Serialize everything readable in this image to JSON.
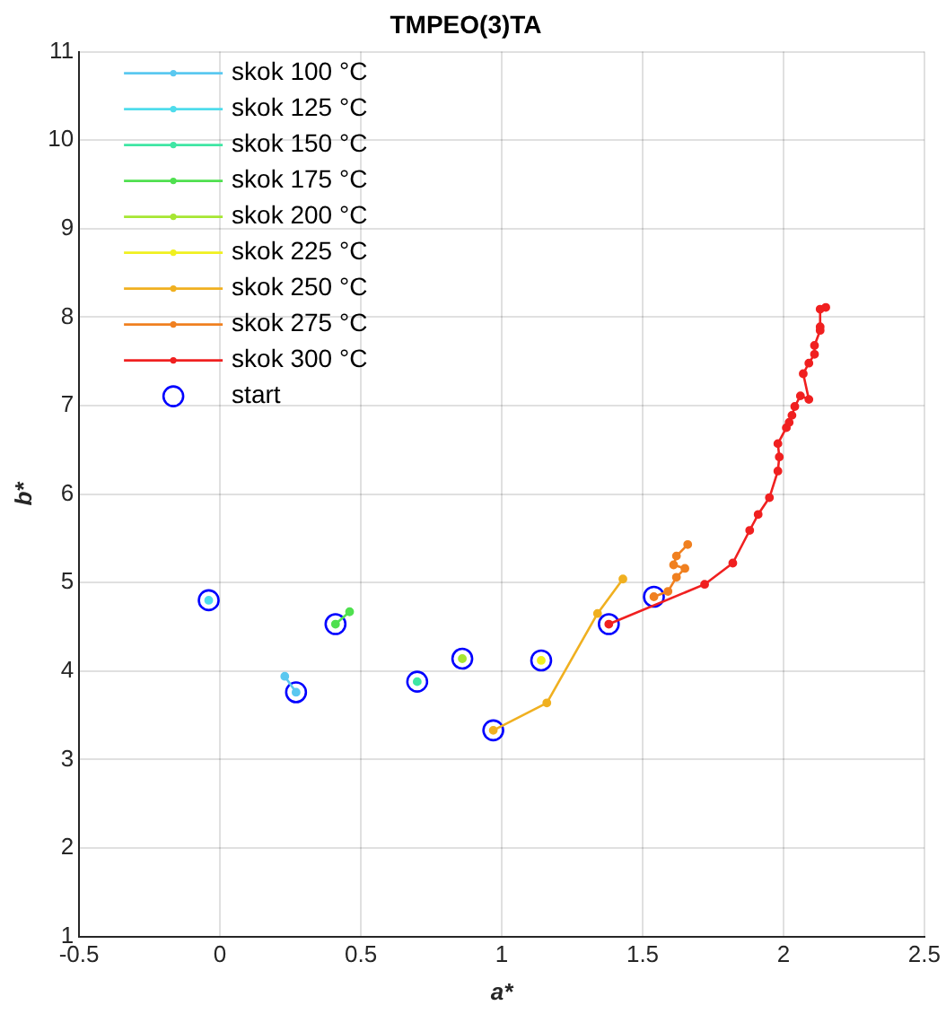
{
  "chart_data": {
    "type": "line",
    "title": "TMPEO(3)TA",
    "xlabel": "a*",
    "ylabel": "b*",
    "xlim": [
      -0.5,
      2.5
    ],
    "xticks": [
      -0.5,
      0,
      0.5,
      1,
      1.5,
      2,
      2.5
    ],
    "ylim": [
      1,
      11
    ],
    "yticks": [
      1,
      2,
      3,
      4,
      5,
      6,
      7,
      8,
      9,
      10,
      11
    ],
    "grid": true,
    "legend": "top left",
    "marker": "circle",
    "series": [
      {
        "name": "skok 100 °C",
        "color": "#5ac8f0",
        "x": [
          0.27,
          0.23
        ],
        "values": [
          3.76,
          3.94
        ]
      },
      {
        "name": "skok 125 °C",
        "color": "#4fdcec",
        "x": [
          -0.04
        ],
        "values": [
          4.8
        ]
      },
      {
        "name": "skok 150 °C",
        "color": "#3fe6a4",
        "x": [
          0.7
        ],
        "values": [
          3.88
        ]
      },
      {
        "name": "skok 175 °C",
        "color": "#4fe04f",
        "x": [
          0.41,
          0.46
        ],
        "values": [
          4.53,
          4.67
        ]
      },
      {
        "name": "skok 200 °C",
        "color": "#a6e632",
        "x": [
          0.86
        ],
        "values": [
          4.14
        ]
      },
      {
        "name": "skok 225 °C",
        "color": "#f0f020",
        "x": [
          1.14
        ],
        "values": [
          4.12
        ]
      },
      {
        "name": "skok 250 °C",
        "color": "#f0b020",
        "x": [
          0.97,
          1.16,
          1.34,
          1.43
        ],
        "values": [
          3.33,
          3.64,
          4.65,
          5.04
        ]
      },
      {
        "name": "skok 275 °C",
        "color": "#f08020",
        "x": [
          1.54,
          1.59,
          1.62,
          1.65,
          1.61,
          1.62,
          1.66
        ],
        "values": [
          4.84,
          4.9,
          5.06,
          5.16,
          5.2,
          5.3,
          5.43
        ]
      },
      {
        "name": "skok 300 °C",
        "color": "#f02020",
        "x": [
          1.38,
          1.72,
          1.82,
          1.88,
          1.91,
          1.95,
          1.98,
          1.985,
          1.98,
          2.01,
          2.02,
          2.03,
          2.04,
          2.06,
          2.09,
          2.07,
          2.09,
          2.11,
          2.11,
          2.13,
          2.13,
          2.13,
          2.15
        ],
        "values": [
          4.53,
          4.98,
          5.22,
          5.59,
          5.77,
          5.96,
          6.26,
          6.42,
          6.57,
          6.75,
          6.81,
          6.89,
          6.99,
          7.11,
          7.07,
          7.36,
          7.48,
          7.58,
          7.68,
          7.85,
          7.89,
          8.09,
          8.11
        ]
      },
      {
        "name": "start",
        "type": "scatter",
        "color": "#0000ff",
        "x": [
          0.27,
          -0.04,
          0.7,
          0.41,
          0.86,
          1.14,
          0.97,
          1.54,
          1.38
        ],
        "values": [
          3.76,
          4.8,
          3.88,
          4.53,
          4.14,
          4.12,
          3.33,
          4.84,
          4.53
        ]
      }
    ]
  }
}
